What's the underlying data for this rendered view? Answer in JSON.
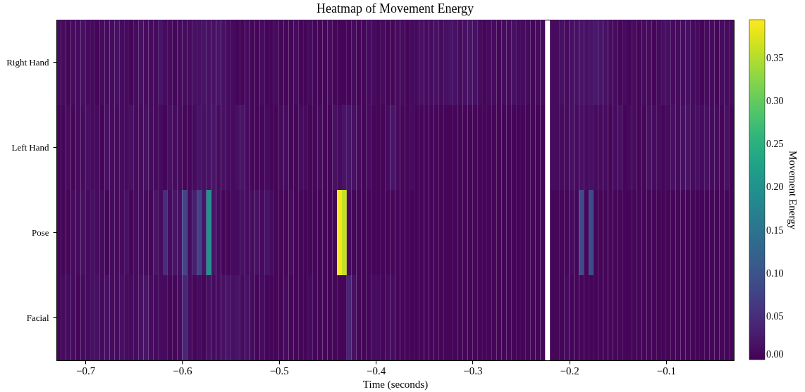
{
  "chart_data": {
    "type": "heatmap",
    "title": "Heatmap of Movement Energy",
    "xlabel": "Time (seconds)",
    "clabel": "Movement Energy",
    "xlim": [
      -0.73,
      -0.03
    ],
    "xticks": [
      -0.7,
      -0.6,
      -0.5,
      -0.4,
      -0.3,
      -0.2,
      -0.1
    ],
    "clim": [
      0,
      0.395
    ],
    "cticks": [
      {
        "value": 0,
        "label": "0.00"
      },
      0.05,
      {
        "value": 0.1,
        "label": "0.10"
      },
      0.15,
      {
        "value": 0.2,
        "label": "0.20"
      },
      0.25,
      {
        "value": 0.3,
        "label": "0.30"
      },
      0.35
    ],
    "y_categories": [
      "Right Hand",
      "Left Hand",
      "Pose",
      "Facial"
    ],
    "x": [
      -0.7275,
      -0.7225,
      -0.7175,
      -0.7125,
      -0.7075,
      -0.7025,
      -0.6975,
      -0.6925,
      -0.6875,
      -0.6825,
      -0.6775,
      -0.6725,
      -0.6675,
      -0.6625,
      -0.6575,
      -0.6525,
      -0.6475,
      -0.6425,
      -0.6375,
      -0.6325,
      -0.6275,
      -0.6225,
      -0.6175,
      -0.6125,
      -0.6075,
      -0.6025,
      -0.5975,
      -0.5925,
      -0.5875,
      -0.5825,
      -0.5775,
      -0.5725,
      -0.5675,
      -0.5625,
      -0.5575,
      -0.5525,
      -0.5475,
      -0.5425,
      -0.5375,
      -0.5325,
      -0.5275,
      -0.5225,
      -0.5175,
      -0.5125,
      -0.5075,
      -0.5025,
      -0.4975,
      -0.4925,
      -0.4875,
      -0.4825,
      -0.4775,
      -0.4725,
      -0.4675,
      -0.4625,
      -0.4575,
      -0.4525,
      -0.4475,
      -0.4425,
      -0.4375,
      -0.4325,
      -0.4275,
      -0.4225,
      -0.4175,
      -0.4125,
      -0.4075,
      -0.4025,
      -0.3975,
      -0.3925,
      -0.3875,
      -0.3825,
      -0.3775,
      -0.3725,
      -0.3675,
      -0.3625,
      -0.3575,
      -0.3525,
      -0.3475,
      -0.3425,
      -0.3375,
      -0.3325,
      -0.3275,
      -0.3225,
      -0.3175,
      -0.3125,
      -0.3075,
      -0.3025,
      -0.2975,
      -0.2925,
      -0.2875,
      -0.2825,
      -0.2775,
      -0.2725,
      -0.2675,
      -0.2625,
      -0.2575,
      -0.2525,
      -0.2475,
      -0.2425,
      -0.2375,
      -0.2325,
      -0.2275,
      -0.2225,
      -0.2175,
      -0.2125,
      -0.2075,
      -0.2025,
      -0.1975,
      -0.1925,
      -0.1875,
      -0.1825,
      -0.1775,
      -0.1725,
      -0.1675,
      -0.1625,
      -0.1575,
      -0.1525,
      -0.1475,
      -0.1425,
      -0.1375,
      -0.1325,
      -0.1275,
      -0.1225,
      -0.1175,
      -0.1125,
      -0.1075,
      -0.1025,
      -0.0975,
      -0.0925,
      -0.0875,
      -0.0825,
      -0.0775,
      -0.0725,
      -0.0675,
      -0.0625,
      -0.0575,
      -0.0525,
      -0.0475,
      -0.0425,
      -0.0375,
      -0.0325
    ],
    "cells": [
      [
        0.01,
        0.01,
        0.005,
        0.01,
        0.01,
        0.015,
        0.01,
        0.01,
        0.005,
        0.01,
        0.01,
        0.01,
        0.015,
        0.01,
        0.01,
        0.005,
        0.01,
        0.015,
        0.01,
        0.01,
        0.01,
        0.02,
        0.01,
        0.01,
        0.005,
        0.01,
        0.01,
        0.01,
        0.015,
        0.015,
        0.02,
        0.015,
        0.015,
        0.02,
        0.015,
        0.01,
        0.01,
        0.005,
        0.005,
        0.01,
        0.005,
        0.005,
        0.01,
        0.005,
        0.005,
        0.01,
        0.005,
        0.005,
        0.005,
        0.01,
        0.005,
        0.005,
        0.01,
        0.005,
        0.005,
        0.005,
        0.01,
        0.005,
        0.005,
        0.005,
        0.005,
        0.01,
        0.005,
        0.005,
        0.01,
        0.01,
        0.005,
        0.01,
        0.005,
        0.005,
        0.01,
        0.01,
        0.005,
        0.01,
        0.01,
        0.015,
        0.01,
        0.01,
        0.015,
        0.01,
        0.015,
        0.02,
        0.015,
        0.01,
        0.015,
        0.02,
        0.015,
        0.01,
        0.005,
        0.01,
        0.01,
        0.005,
        0.01,
        0.01,
        0.015,
        0.01,
        0.01,
        0.01,
        0.005,
        0.01,
        0.01,
        null,
        0.01,
        0.01,
        0.015,
        0.01,
        0.015,
        0.015,
        0.02,
        0.015,
        0.02,
        0.025,
        0.02,
        0.015,
        0.01,
        0.01,
        0.005,
        0.01,
        0.005,
        0.01,
        0.005,
        0.01,
        0.01,
        0.005,
        0.01,
        0.015,
        0.015,
        0.01,
        0.01,
        0.01,
        0.015,
        0.01,
        0.01,
        0.005,
        0.01,
        0.01,
        0.005,
        0.01,
        0.01,
        0.01
      ],
      [
        0.005,
        0.005,
        0.01,
        0.005,
        0.01,
        0.01,
        0.015,
        0.01,
        0.01,
        0.005,
        0.015,
        0.01,
        0.01,
        0.01,
        0.01,
        0.015,
        0.01,
        0.01,
        0.015,
        0.01,
        0.01,
        0.01,
        0.005,
        0.015,
        0.01,
        0.01,
        0.005,
        0.005,
        0.01,
        0.02,
        0.015,
        0.015,
        0.02,
        0.01,
        0.015,
        0.01,
        0.01,
        0.015,
        0.02,
        0.01,
        0.005,
        0.005,
        0.005,
        0.01,
        0.005,
        0.005,
        0.01,
        0.01,
        0.005,
        0.005,
        0.01,
        0.01,
        0.005,
        0.005,
        0.01,
        0.005,
        0.005,
        0.015,
        0.01,
        0.02,
        0.02,
        0.015,
        0.01,
        0.005,
        0.01,
        0.005,
        0.005,
        0.005,
        0.01,
        0.02,
        0.01,
        0.005,
        0.005,
        0.01,
        0.005,
        0.005,
        0.005,
        0.005,
        0.005,
        0.005,
        0.005,
        0.005,
        0.005,
        0.005,
        0.005,
        0.005,
        0.005,
        0.005,
        0.005,
        0.005,
        0.005,
        0.005,
        0.005,
        0.005,
        0.005,
        0.005,
        0.005,
        0.005,
        0.005,
        0.005,
        0.005,
        null,
        0.01,
        0.01,
        0.01,
        0.01,
        0.015,
        0.01,
        0.015,
        0.01,
        0.015,
        0.01,
        0.01,
        0.01,
        0.005,
        0.01,
        0.015,
        0.005,
        0.01,
        0.01,
        0.005,
        0.005,
        0.015,
        0.01,
        0.01,
        0.005,
        0.01,
        0.015,
        0.01,
        0.015,
        0.02,
        0.01,
        0.015,
        0.01,
        0.015,
        0.01,
        0.01,
        0.005,
        0.015,
        0.005
      ],
      [
        0.005,
        0.005,
        0.005,
        0.01,
        0.01,
        0.015,
        0.01,
        0.015,
        0.01,
        0.01,
        0.005,
        0.01,
        0.01,
        0.01,
        0.015,
        0.005,
        0.01,
        0.01,
        0.01,
        0.005,
        0.02,
        0.01,
        0.05,
        0.01,
        0.02,
        0.015,
        0.08,
        0.01,
        0.03,
        0.08,
        0.02,
        0.2,
        0.02,
        0.01,
        0.005,
        0.005,
        0.01,
        0.01,
        0.015,
        0.01,
        0.01,
        0.015,
        0.01,
        0.02,
        0.01,
        0.005,
        0.005,
        0.005,
        0.01,
        0.005,
        0.005,
        0.005,
        0.005,
        0.005,
        0.005,
        0.005,
        0.005,
        0.005,
        0.39,
        0.36,
        0.01,
        0.005,
        0.005,
        0.005,
        0.005,
        0.005,
        0.005,
        0.005,
        0.005,
        0.005,
        0.005,
        0.005,
        0.005,
        0.005,
        0.005,
        0.005,
        0.005,
        0.005,
        0.005,
        0.005,
        0.005,
        0.005,
        0.005,
        0.005,
        0.005,
        0.005,
        0.005,
        0.005,
        0.005,
        0.005,
        0.005,
        0.005,
        0.005,
        0.005,
        0.005,
        0.005,
        0.005,
        0.005,
        0.005,
        0.005,
        0.005,
        null,
        0.005,
        0.005,
        0.005,
        0.005,
        0.01,
        0.005,
        0.09,
        0.005,
        0.09,
        0.005,
        0.005,
        0.005,
        0.005,
        0.005,
        0.005,
        0.005,
        0.005,
        0.005,
        0.005,
        0.005,
        0.005,
        0.005,
        0.005,
        0.005,
        0.005,
        0.005,
        0.005,
        0.005,
        0.005,
        0.005,
        0.005,
        0.005,
        0.005,
        0.005,
        0.005,
        0.005,
        0.005,
        0.005
      ],
      [
        0.005,
        0.01,
        0.01,
        0.01,
        0.005,
        0.01,
        0.01,
        0.015,
        0.015,
        0.01,
        0.015,
        0.01,
        0.01,
        0.015,
        0.01,
        0.01,
        0.01,
        0.015,
        0.02,
        0.01,
        0.01,
        0.01,
        0.01,
        0.005,
        0.005,
        0.01,
        0.04,
        0.01,
        0.005,
        0.01,
        0.005,
        0.015,
        0.01,
        0.01,
        0.015,
        0.02,
        0.015,
        0.02,
        0.01,
        0.015,
        0.01,
        0.005,
        0.01,
        0.005,
        0.005,
        0.005,
        0.005,
        0.01,
        0.005,
        0.005,
        0.005,
        0.005,
        0.01,
        0.005,
        0.005,
        0.005,
        0.005,
        0.005,
        0.005,
        0.005,
        0.04,
        0.015,
        0.005,
        0.005,
        0.005,
        0.01,
        0.01,
        0.005,
        0.01,
        0.01,
        0.005,
        0.005,
        0.005,
        0.005,
        0.005,
        0.005,
        0.005,
        0.005,
        0.005,
        0.005,
        0.005,
        0.005,
        0.005,
        0.005,
        0.005,
        0.005,
        0.005,
        0.005,
        0.005,
        0.005,
        0.005,
        0.005,
        0.005,
        0.005,
        0.005,
        0.005,
        0.005,
        0.005,
        0.005,
        0.005,
        0.005,
        null,
        0.005,
        0.005,
        0.005,
        0.01,
        0.005,
        0.005,
        0.005,
        0.005,
        0.005,
        0.005,
        0.005,
        0.005,
        0.005,
        0.005,
        0.005,
        0.005,
        0.005,
        0.005,
        0.005,
        0.005,
        0.005,
        0.005,
        0.005,
        0.005,
        0.005,
        0.005,
        0.005,
        0.005,
        0.005,
        0.005,
        0.005,
        0.005,
        0.005,
        0.005,
        0.005,
        0.005,
        0.005,
        0.005
      ]
    ]
  }
}
